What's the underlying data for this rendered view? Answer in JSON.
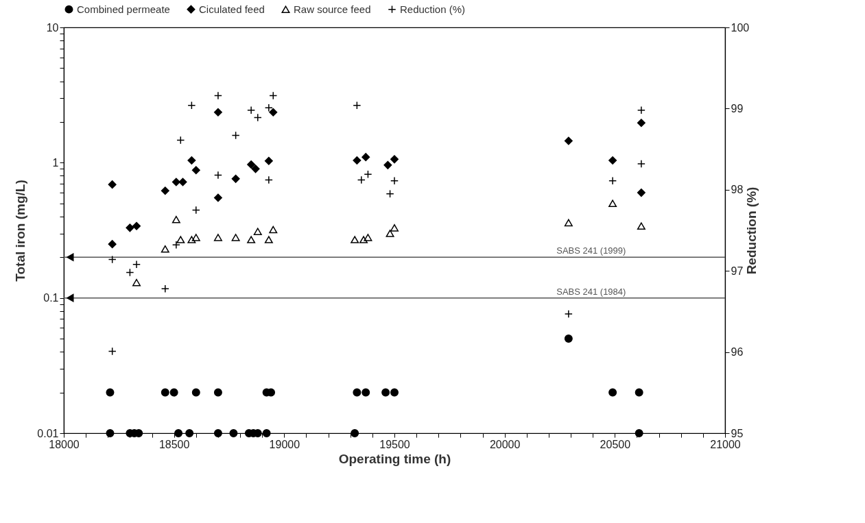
{
  "chart_data": {
    "type": "scatter",
    "xlabel": "Operating time (h)",
    "ylabel": "Total iron (mg/L)",
    "y2label": "Reduction (%)",
    "log": "y",
    "grid": false,
    "legend": "top",
    "xlim": [
      18000,
      21000
    ],
    "xticks": [
      18000,
      {
        "value": 18100,
        "label": null
      },
      {
        "value": 18200,
        "label": null
      },
      {
        "value": 18300,
        "label": null
      },
      {
        "value": 18400,
        "label": null
      },
      18500,
      {
        "value": 18600,
        "label": null
      },
      {
        "value": 18700,
        "label": null
      },
      {
        "value": 18800,
        "label": null
      },
      {
        "value": 18900,
        "label": null
      },
      19000,
      {
        "value": 19100,
        "label": null
      },
      {
        "value": 19200,
        "label": null
      },
      {
        "value": 19300,
        "label": null
      },
      {
        "value": 19400,
        "label": null
      },
      19500,
      {
        "value": 19600,
        "label": null
      },
      {
        "value": 19700,
        "label": null
      },
      {
        "value": 19800,
        "label": null
      },
      {
        "value": 19900,
        "label": null
      },
      20000,
      {
        "value": 20100,
        "label": null
      },
      {
        "value": 20200,
        "label": null
      },
      {
        "value": 20300,
        "label": null
      },
      {
        "value": 20400,
        "label": null
      },
      20500,
      {
        "value": 20600,
        "label": null
      },
      {
        "value": 20700,
        "label": null
      },
      {
        "value": 20800,
        "label": null
      },
      {
        "value": 20900,
        "label": null
      },
      21000
    ],
    "ylim": [
      0.01,
      10
    ],
    "yticks": [
      0.01,
      {
        "value": 0.02,
        "label": null
      },
      {
        "value": 0.03,
        "label": null
      },
      {
        "value": 0.04,
        "label": null
      },
      {
        "value": 0.05,
        "label": null
      },
      {
        "value": 0.06,
        "label": null
      },
      {
        "value": 0.07,
        "label": null
      },
      {
        "value": 0.08,
        "label": null
      },
      {
        "value": 0.09,
        "label": null
      },
      0.1,
      {
        "value": 0.2,
        "label": null
      },
      {
        "value": 0.3,
        "label": null
      },
      {
        "value": 0.4,
        "label": null
      },
      {
        "value": 0.5,
        "label": null
      },
      {
        "value": 0.6,
        "label": null
      },
      {
        "value": 0.7,
        "label": null
      },
      {
        "value": 0.8,
        "label": null
      },
      {
        "value": 0.9,
        "label": null
      },
      1,
      {
        "value": 2,
        "label": null
      },
      {
        "value": 3,
        "label": null
      },
      {
        "value": 4,
        "label": null
      },
      {
        "value": 5,
        "label": null
      },
      {
        "value": 6,
        "label": null
      },
      {
        "value": 7,
        "label": null
      },
      {
        "value": 8,
        "label": null
      },
      {
        "value": 9,
        "label": null
      },
      10
    ],
    "y2lim": [
      95,
      100
    ],
    "y2ticks": [
      95,
      96,
      97,
      98,
      99,
      100
    ],
    "ref_lines": [
      {
        "axis": "y",
        "value": 0.2,
        "label": "SABS 241 (1999)"
      },
      {
        "axis": "y",
        "value": 0.1,
        "label": "SABS 241 (1984)"
      }
    ],
    "series": [
      {
        "name": "Combined permeate",
        "color": "#000000",
        "marker": "circle",
        "x": [
          18210,
          18210,
          18300,
          18320,
          18340,
          18460,
          18500,
          18520,
          18570,
          18600,
          18700,
          18700,
          18770,
          18840,
          18860,
          18880,
          18920,
          18940,
          18920,
          19320,
          19330,
          19370,
          19460,
          19500,
          20290,
          20490,
          20610,
          20610
        ],
        "values": [
          0.02,
          0.01,
          0.01,
          0.01,
          0.01,
          0.02,
          0.02,
          0.01,
          0.01,
          0.02,
          0.02,
          0.01,
          0.01,
          0.01,
          0.01,
          0.01,
          0.02,
          0.02,
          0.01,
          0.01,
          0.02,
          0.02,
          0.02,
          0.02,
          0.05,
          0.02,
          0.02,
          0.01
        ]
      },
      {
        "name": "Ciculated feed",
        "color": "#000000",
        "marker": "diamond",
        "x": [
          18220,
          18220,
          18300,
          18330,
          18460,
          18510,
          18540,
          18580,
          18600,
          18700,
          18700,
          18780,
          18850,
          18870,
          18930,
          18950,
          19330,
          19370,
          19470,
          19500,
          20290,
          20490,
          20620,
          20620
        ],
        "values": [
          0.69,
          0.25,
          0.33,
          0.34,
          0.62,
          0.72,
          0.72,
          1.04,
          0.88,
          2.36,
          0.55,
          0.76,
          0.97,
          0.9,
          1.03,
          2.36,
          1.04,
          1.1,
          0.96,
          1.06,
          1.45,
          1.04,
          1.97,
          0.6
        ]
      },
      {
        "name": "Raw source feed",
        "color": "#000000",
        "marker": "triangle",
        "x": [
          18510,
          18460,
          18330,
          18530,
          18580,
          18600,
          18700,
          18780,
          18850,
          18880,
          18930,
          18950,
          19320,
          19360,
          19380,
          19480,
          19500,
          20290,
          20490,
          20620
        ],
        "values": [
          0.38,
          0.23,
          0.13,
          0.27,
          0.27,
          0.28,
          0.28,
          0.28,
          0.27,
          0.31,
          0.27,
          0.32,
          0.27,
          0.27,
          0.28,
          0.3,
          0.33,
          0.36,
          0.5,
          0.34
        ]
      },
      {
        "name": "Reduction (%)",
        "color": "#000000",
        "marker": "cross",
        "axis": "y2",
        "x": [
          18220,
          18330,
          18300,
          18460,
          18220,
          18530,
          18580,
          18510,
          18600,
          18700,
          18700,
          18780,
          18850,
          18880,
          18930,
          18930,
          18950,
          19330,
          19350,
          19380,
          19500,
          19480,
          20290,
          20490,
          20620,
          20620
        ],
        "values": [
          97.14,
          97.08,
          96.98,
          96.78,
          96.01,
          98.61,
          99.04,
          97.32,
          97.75,
          99.16,
          98.18,
          98.67,
          98.98,
          98.89,
          99.01,
          98.12,
          99.16,
          99.04,
          98.12,
          98.19,
          98.11,
          97.95,
          96.47,
          98.11,
          98.98,
          98.32
        ]
      }
    ]
  }
}
